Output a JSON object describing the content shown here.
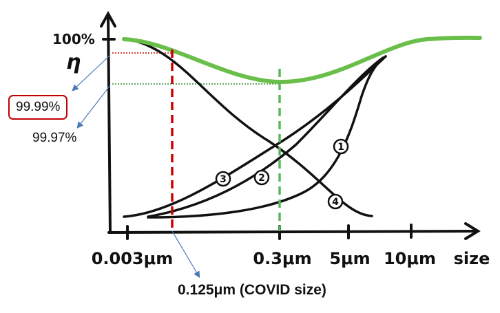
{
  "axes": {
    "y_top_label": "100%",
    "y_symbol": "η",
    "x_ticks": [
      "0.003μm",
      "0.3μm",
      "5μm",
      "10μm"
    ],
    "x_end_label": "size"
  },
  "curves": [
    {
      "id": "1",
      "label": "1"
    },
    {
      "id": "2",
      "label": "2"
    },
    {
      "id": "3",
      "label": "3"
    },
    {
      "id": "4",
      "label": "4"
    }
  ],
  "callouts": {
    "efficiency_high": "99.99%",
    "efficiency_low": "99.97%",
    "covid_size": "0.125μm (COVID size)"
  },
  "colors": {
    "total_curve": "#6abf4b",
    "red_marker": "#cc0000",
    "green_marker": "#5cb85c",
    "arrow": "#4a7ab5",
    "ink": "#111111"
  }
}
